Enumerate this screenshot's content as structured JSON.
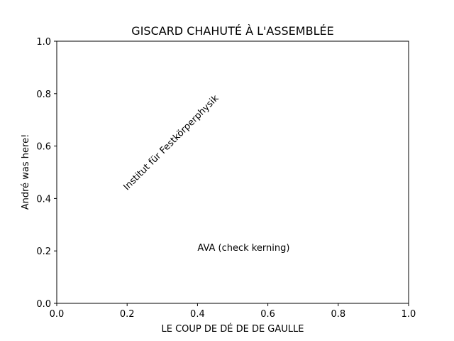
{
  "chart_data": {
    "type": "scatter",
    "title": "GISCARD CHAHUTÉ À L'ASSEMBLÉE",
    "xlabel": "LE COUP DE DÉ DE DE GAULLE",
    "ylabel": "André was here!",
    "xlim": [
      0.0,
      1.0
    ],
    "ylim": [
      0.0,
      1.0
    ],
    "xticks": [
      "0.0",
      "0.2",
      "0.4",
      "0.6",
      "0.8",
      "1.0"
    ],
    "yticks": [
      "0.0",
      "0.2",
      "0.4",
      "0.6",
      "0.8",
      "1.0"
    ],
    "grid": false,
    "series": [],
    "annotations": [
      {
        "text": "Institut für Festkörperphysik",
        "x": 0.2,
        "y": 0.43,
        "rotation": 45
      },
      {
        "text": "AVA (check kerning)",
        "x": 0.4,
        "y": 0.2,
        "rotation": 0
      }
    ]
  }
}
